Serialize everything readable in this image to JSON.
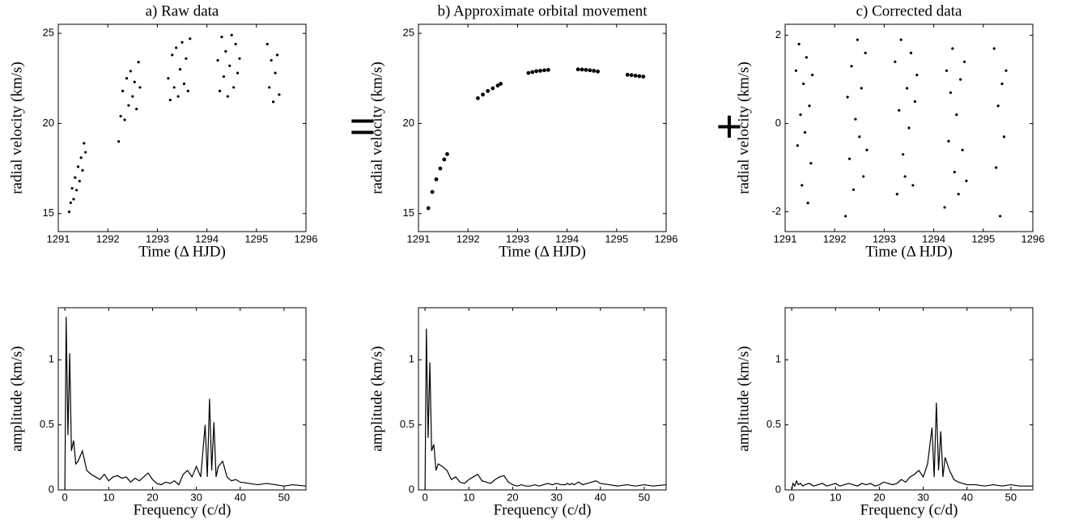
{
  "operators": [
    "=",
    "+"
  ],
  "chart_data": [
    {
      "type": "scatter",
      "title": "a) Raw data",
      "xlabel": "Time (Δ HJD)",
      "ylabel": "radial velocity (km/s)",
      "color": "#000000",
      "marker_size": 1.6,
      "xlim": [
        1291,
        1296
      ],
      "xticks": [
        1291,
        1292,
        1293,
        1294,
        1295,
        1296
      ],
      "ylim": [
        14,
        25.5
      ],
      "yticks": [
        15,
        20,
        25
      ],
      "x": [
        1291.22,
        1291.25,
        1291.28,
        1291.31,
        1291.34,
        1291.37,
        1291.4,
        1291.43,
        1291.46,
        1291.49,
        1291.52,
        1291.55,
        1292.22,
        1292.26,
        1292.3,
        1292.34,
        1292.38,
        1292.42,
        1292.46,
        1292.5,
        1292.54,
        1292.58,
        1292.62,
        1292.65,
        1293.22,
        1293.26,
        1293.3,
        1293.34,
        1293.38,
        1293.42,
        1293.46,
        1293.5,
        1293.54,
        1293.58,
        1293.62,
        1293.66,
        1294.22,
        1294.26,
        1294.3,
        1294.34,
        1294.38,
        1294.42,
        1294.46,
        1294.5,
        1294.54,
        1294.58,
        1294.62,
        1294.66,
        1295.22,
        1295.26,
        1295.3,
        1295.34,
        1295.38,
        1295.42,
        1295.46
      ],
      "values": [
        15.1,
        15.6,
        16.4,
        15.8,
        17.0,
        16.3,
        17.6,
        16.8,
        18.1,
        17.4,
        18.9,
        18.4,
        19.0,
        20.4,
        21.8,
        20.2,
        22.5,
        21.0,
        22.9,
        21.5,
        22.3,
        20.8,
        23.4,
        22.0,
        22.5,
        21.3,
        23.8,
        22.0,
        24.2,
        21.5,
        23.0,
        24.5,
        22.2,
        23.6,
        21.8,
        24.7,
        23.5,
        21.8,
        24.8,
        22.6,
        24.0,
        21.5,
        23.2,
        24.9,
        22.0,
        24.4,
        22.8,
        23.6,
        24.4,
        22.0,
        23.5,
        21.2,
        22.8,
        23.8,
        21.6
      ]
    },
    {
      "type": "scatter",
      "title": "b) Approximate orbital movement",
      "xlabel": "Time (Δ HJD)",
      "ylabel": "radial velocity (km/s)",
      "color": "#000000",
      "marker_size": 2.4,
      "xlim": [
        1291,
        1296
      ],
      "xticks": [
        1291,
        1292,
        1293,
        1294,
        1295,
        1296
      ],
      "ylim": [
        14,
        25.5
      ],
      "yticks": [
        15,
        20,
        25
      ],
      "x": [
        1291.2,
        1291.28,
        1291.36,
        1291.44,
        1291.52,
        1291.58,
        1292.2,
        1292.3,
        1292.4,
        1292.5,
        1292.6,
        1292.66,
        1293.22,
        1293.3,
        1293.38,
        1293.46,
        1293.54,
        1293.62,
        1294.22,
        1294.3,
        1294.38,
        1294.46,
        1294.54,
        1294.62,
        1295.22,
        1295.3,
        1295.38,
        1295.46,
        1295.54
      ],
      "values": [
        15.3,
        16.2,
        16.9,
        17.5,
        18.0,
        18.3,
        21.4,
        21.6,
        21.8,
        21.95,
        22.1,
        22.2,
        22.8,
        22.85,
        22.9,
        22.92,
        22.95,
        22.97,
        23.0,
        22.99,
        22.97,
        22.95,
        22.92,
        22.88,
        22.7,
        22.68,
        22.65,
        22.62,
        22.6
      ]
    },
    {
      "type": "scatter",
      "title": "c) Corrected data",
      "xlabel": "Time (Δ HJD)",
      "ylabel": "radial velocity (km/s)",
      "color": "#000000",
      "marker_size": 1.6,
      "xlim": [
        1291,
        1296
      ],
      "xticks": [
        1291,
        1292,
        1293,
        1294,
        1295,
        1296
      ],
      "ylim": [
        -2.45,
        2.25
      ],
      "yticks": [
        -2,
        0,
        2
      ],
      "x": [
        1291.22,
        1291.25,
        1291.28,
        1291.31,
        1291.34,
        1291.37,
        1291.4,
        1291.43,
        1291.46,
        1291.49,
        1291.52,
        1291.55,
        1292.22,
        1292.26,
        1292.3,
        1292.34,
        1292.38,
        1292.42,
        1292.46,
        1292.5,
        1292.54,
        1292.58,
        1292.62,
        1292.65,
        1293.22,
        1293.26,
        1293.3,
        1293.34,
        1293.38,
        1293.42,
        1293.46,
        1293.5,
        1293.54,
        1293.58,
        1293.62,
        1293.66,
        1294.22,
        1294.26,
        1294.3,
        1294.34,
        1294.38,
        1294.42,
        1294.46,
        1294.5,
        1294.54,
        1294.58,
        1294.62,
        1294.66,
        1295.22,
        1295.26,
        1295.3,
        1295.34,
        1295.38,
        1295.42,
        1295.46
      ],
      "values": [
        1.2,
        -0.5,
        1.8,
        0.2,
        -1.4,
        0.9,
        -0.2,
        1.5,
        -1.8,
        0.4,
        -0.9,
        1.1,
        -2.1,
        0.6,
        -0.8,
        1.3,
        -1.5,
        0.1,
        1.9,
        -0.3,
        0.8,
        -1.2,
        1.6,
        -0.6,
        1.4,
        -1.6,
        0.3,
        1.9,
        -0.7,
        -1.2,
        0.8,
        -0.1,
        1.6,
        -1.4,
        0.5,
        1.1,
        -1.9,
        1.2,
        -0.4,
        0.7,
        1.7,
        -1.1,
        0.2,
        -1.6,
        1.0,
        -0.6,
        1.4,
        -1.3,
        1.7,
        -1.0,
        0.4,
        -2.1,
        0.9,
        -0.3,
        1.2
      ]
    },
    {
      "type": "line",
      "xlabel": "Frequency (c/d)",
      "ylabel": "amplitude (km/s)",
      "color": "#000000",
      "xlim": [
        -1.5,
        55
      ],
      "xticks": [
        0,
        10,
        20,
        30,
        40,
        50
      ],
      "ylim": [
        0,
        1.4
      ],
      "yticks": [
        0,
        0.5,
        1
      ],
      "x": [
        0,
        0.3,
        0.7,
        1.1,
        1.5,
        2,
        2.5,
        3,
        4,
        5,
        6,
        7,
        8,
        9,
        10,
        11,
        12,
        13,
        14,
        15,
        16,
        17,
        18,
        19,
        20,
        21,
        22,
        23,
        24,
        25,
        26,
        27,
        28,
        29,
        30,
        31,
        32,
        32.5,
        33,
        33.5,
        34,
        34.5,
        35,
        36,
        37,
        38,
        39,
        40,
        42,
        44,
        46,
        48,
        50,
        52,
        55
      ],
      "values": [
        0,
        1.33,
        0.42,
        1.05,
        0.3,
        0.38,
        0.2,
        0.22,
        0.3,
        0.15,
        0.12,
        0.1,
        0.08,
        0.12,
        0.07,
        0.1,
        0.11,
        0.09,
        0.1,
        0.06,
        0.09,
        0.07,
        0.1,
        0.13,
        0.08,
        0.05,
        0.04,
        0.06,
        0.05,
        0.07,
        0.04,
        0.12,
        0.15,
        0.1,
        0.18,
        0.1,
        0.5,
        0.1,
        0.7,
        0.15,
        0.52,
        0.1,
        0.18,
        0.22,
        0.1,
        0.07,
        0.08,
        0.06,
        0.05,
        0.04,
        0.05,
        0.04,
        0.03,
        0.04,
        0.03
      ]
    },
    {
      "type": "line",
      "xlabel": "Frequency (c/d)",
      "ylabel": "amplitude (km/s)",
      "color": "#000000",
      "xlim": [
        -1.5,
        55
      ],
      "xticks": [
        0,
        10,
        20,
        30,
        40,
        50
      ],
      "ylim": [
        0,
        1.4
      ],
      "yticks": [
        0,
        0.5,
        1
      ],
      "x": [
        0,
        0.3,
        0.7,
        1.1,
        1.5,
        2,
        2.5,
        3,
        4,
        5,
        6,
        7,
        8,
        9,
        10,
        11,
        12,
        13,
        14,
        15,
        16,
        17,
        18,
        19,
        20,
        21,
        22,
        23,
        24,
        25,
        26,
        27,
        28,
        29,
        30,
        31,
        32,
        32.5,
        33,
        33.5,
        34,
        34.5,
        35,
        36,
        37,
        38,
        39,
        40,
        42,
        44,
        46,
        48,
        50,
        52,
        55
      ],
      "values": [
        0,
        1.24,
        0.4,
        0.98,
        0.3,
        0.35,
        0.15,
        0.2,
        0.18,
        0.15,
        0.08,
        0.1,
        0.06,
        0.05,
        0.08,
        0.1,
        0.12,
        0.07,
        0.06,
        0.05,
        0.08,
        0.1,
        0.11,
        0.06,
        0.04,
        0.03,
        0.04,
        0.03,
        0.03,
        0.04,
        0.03,
        0.04,
        0.05,
        0.04,
        0.05,
        0.04,
        0.04,
        0.05,
        0.04,
        0.05,
        0.04,
        0.05,
        0.06,
        0.04,
        0.05,
        0.06,
        0.07,
        0.05,
        0.04,
        0.03,
        0.04,
        0.03,
        0.04,
        0.03,
        0.04
      ]
    },
    {
      "type": "line",
      "xlabel": "Frequency (c/d)",
      "ylabel": "amplitude (km/s)",
      "color": "#000000",
      "xlim": [
        -1.5,
        55
      ],
      "xticks": [
        0,
        10,
        20,
        30,
        40,
        50
      ],
      "ylim": [
        0,
        1.4
      ],
      "yticks": [
        0,
        0.5,
        1
      ],
      "x": [
        0,
        0.3,
        0.7,
        1.1,
        1.5,
        2,
        2.5,
        3,
        4,
        5,
        6,
        7,
        8,
        9,
        10,
        11,
        12,
        13,
        14,
        15,
        16,
        17,
        18,
        19,
        20,
        21,
        22,
        23,
        24,
        25,
        26,
        27,
        28,
        29,
        30,
        31,
        32,
        32.5,
        33,
        33.5,
        34,
        34.5,
        35,
        36,
        37,
        38,
        39,
        40,
        42,
        44,
        46,
        48,
        50,
        52,
        55
      ],
      "values": [
        0,
        0.05,
        0.03,
        0.07,
        0.04,
        0.05,
        0.03,
        0.04,
        0.05,
        0.03,
        0.04,
        0.05,
        0.03,
        0.04,
        0.05,
        0.03,
        0.04,
        0.05,
        0.04,
        0.03,
        0.05,
        0.04,
        0.05,
        0.03,
        0.04,
        0.06,
        0.05,
        0.04,
        0.05,
        0.08,
        0.06,
        0.1,
        0.12,
        0.15,
        0.1,
        0.2,
        0.48,
        0.1,
        0.67,
        0.15,
        0.45,
        0.1,
        0.25,
        0.15,
        0.08,
        0.06,
        0.05,
        0.04,
        0.04,
        0.03,
        0.04,
        0.03,
        0.04,
        0.03,
        0.03
      ]
    }
  ]
}
